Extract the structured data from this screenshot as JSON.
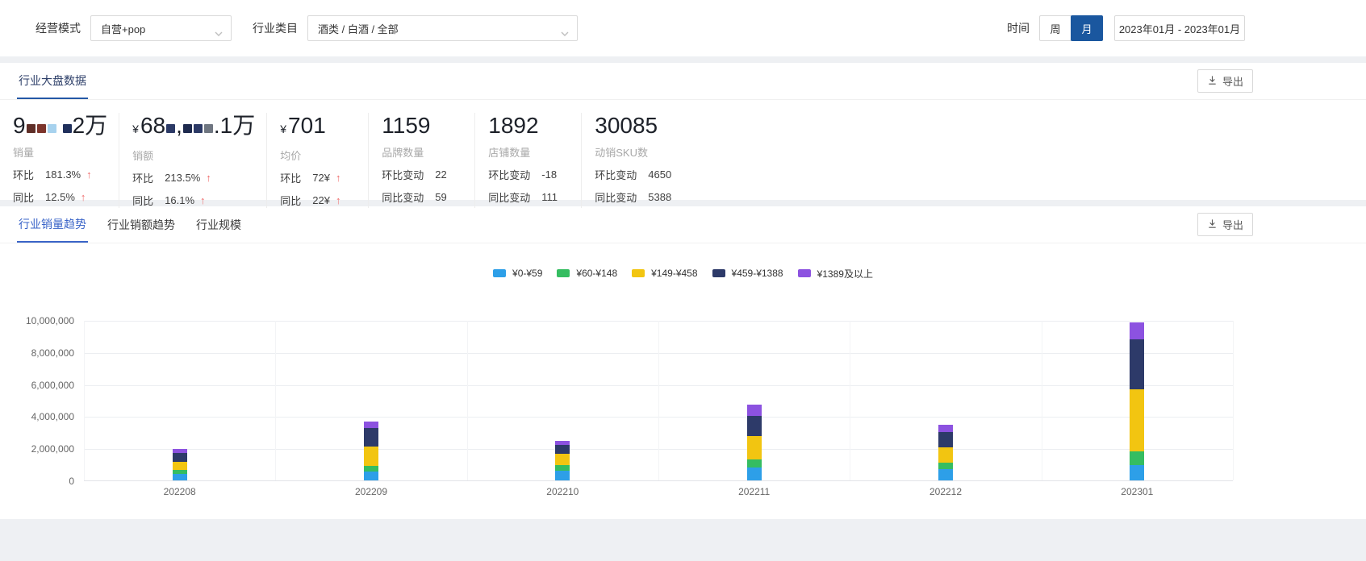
{
  "filters": {
    "mode_label": "经营模式",
    "mode_value": "自营+pop",
    "category_label": "行业类目",
    "category_value": "酒类 / 白酒 / 全部",
    "time_label": "时间",
    "week_label": "周",
    "month_label": "月",
    "date_range": "2023年01月 - 2023年01月"
  },
  "colors": {
    "month_button_active": "#1A579F",
    "overview_tab_underline": "#2458A6",
    "trend_tab_active": "#3A64C8",
    "up_arrow_red": "#EF6B6B"
  },
  "overview": {
    "tab": "行业大盘数据",
    "export_label": "导出",
    "stats": [
      {
        "label": "销量",
        "value_parts": [
          {
            "t": "9"
          },
          {
            "r": [
              "#5F2F28",
              "#7D352C",
              "#A7D2EE"
            ]
          },
          {
            "gap": 6
          },
          {
            "r": [
              "#20305C"
            ]
          },
          {
            "t": "2万"
          }
        ],
        "rows": [
          {
            "k": "环比",
            "v": "181.3%",
            "arrow": "up"
          },
          {
            "k": "同比",
            "v": "12.5%",
            "arrow": "up"
          }
        ]
      },
      {
        "label": "销额",
        "value_parts": [
          {
            "t": "¥",
            "small": true
          },
          {
            "t": "68"
          },
          {
            "r": [
              "#2C3A66"
            ]
          },
          {
            "t": ","
          },
          {
            "r": [
              "#1E2A4E",
              "#2C3A66",
              "#6F7681"
            ]
          },
          {
            "t": ".1万"
          }
        ],
        "rows": [
          {
            "k": "环比",
            "v": "213.5%",
            "arrow": "up"
          },
          {
            "k": "同比",
            "v": "16.1%",
            "arrow": "up"
          }
        ]
      },
      {
        "label": "均价",
        "value_parts": [
          {
            "t": "¥",
            "small": true
          },
          {
            "t": "701"
          }
        ],
        "rows": [
          {
            "k": "环比",
            "v": "72¥",
            "arrow": "up"
          },
          {
            "k": "同比",
            "v": "22¥",
            "arrow": "up"
          }
        ]
      },
      {
        "label": "品牌数量",
        "value_parts": [
          {
            "t": "1159"
          }
        ],
        "rows": [
          {
            "k": "环比变动",
            "v": "22"
          },
          {
            "k": "同比变动",
            "v": "59"
          }
        ]
      },
      {
        "label": "店铺数量",
        "value_parts": [
          {
            "t": "1892"
          }
        ],
        "rows": [
          {
            "k": "环比变动",
            "v": "-18"
          },
          {
            "k": "同比变动",
            "v": "111"
          }
        ]
      },
      {
        "label": "动销SKU数",
        "value_parts": [
          {
            "t": "30085"
          }
        ],
        "rows": [
          {
            "k": "环比变动",
            "v": "4650"
          },
          {
            "k": "同比变动",
            "v": "5388"
          }
        ]
      }
    ]
  },
  "trend": {
    "tabs": [
      {
        "label": "行业销量趋势",
        "active": true
      },
      {
        "label": "行业销额趋势",
        "active": false
      },
      {
        "label": "行业规模",
        "active": false
      }
    ],
    "export_label": "导出"
  },
  "chart_data": {
    "type": "bar",
    "stacked": true,
    "title": "",
    "xlabel": "",
    "ylabel": "",
    "categories": [
      "202208",
      "202209",
      "202210",
      "202211",
      "202212",
      "202301"
    ],
    "series": [
      {
        "name": "¥0-¥59",
        "color": "#2D9FE8",
        "values": [
          400000,
          550000,
          600000,
          800000,
          700000,
          950000
        ]
      },
      {
        "name": "¥60-¥148",
        "color": "#35BD61",
        "values": [
          250000,
          350000,
          350000,
          500000,
          400000,
          850000
        ]
      },
      {
        "name": "¥149-¥458",
        "color": "#F2C511",
        "values": [
          500000,
          1200000,
          700000,
          1450000,
          950000,
          3900000
        ]
      },
      {
        "name": "¥459-¥1388",
        "color": "#2D3A69",
        "values": [
          550000,
          1150000,
          550000,
          1250000,
          950000,
          3100000
        ]
      },
      {
        "name": "¥1389及以上",
        "color": "#8C52E0",
        "values": [
          270000,
          400000,
          250000,
          750000,
          450000,
          1050000
        ]
      }
    ],
    "totals": [
      1970000,
      3650000,
      2450000,
      4750000,
      3450000,
      9850000
    ],
    "ylim": [
      0,
      10000000
    ],
    "yticks": [
      "10,000,000",
      "8,000,000",
      "6,000,000",
      "4,000,000",
      "2,000,000",
      "0"
    ],
    "legend_position": "top",
    "grid": true
  }
}
